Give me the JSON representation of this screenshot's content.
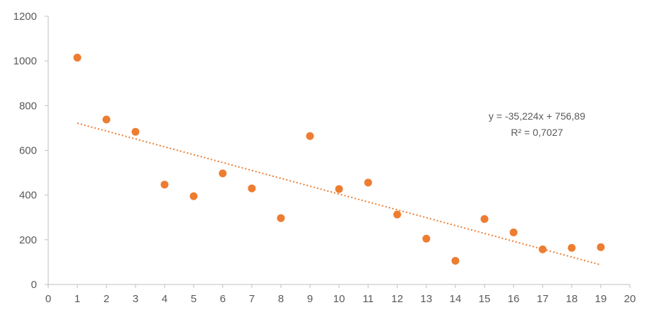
{
  "chart_data": {
    "type": "scatter",
    "x": [
      1,
      2,
      3,
      4,
      5,
      6,
      7,
      8,
      9,
      10,
      11,
      12,
      13,
      14,
      15,
      16,
      17,
      18,
      19
    ],
    "y": [
      1015,
      738,
      683,
      447,
      395,
      497,
      430,
      297,
      664,
      427,
      456,
      313,
      205,
      106,
      293,
      233,
      157,
      164,
      167
    ],
    "xlim": [
      0,
      20
    ],
    "ylim": [
      0,
      1200
    ],
    "x_ticks": [
      "0",
      "1",
      "2",
      "3",
      "4",
      "5",
      "6",
      "7",
      "8",
      "9",
      "10",
      "11",
      "12",
      "13",
      "14",
      "15",
      "16",
      "17",
      "18",
      "19",
      "20"
    ],
    "y_ticks": [
      "0",
      "200",
      "400",
      "600",
      "800",
      "1000",
      "1200"
    ],
    "trendline": {
      "type": "linear",
      "slope": -35.224,
      "intercept": 756.89,
      "x_range": [
        1,
        19
      ],
      "style": "dotted"
    },
    "annotation": {
      "equation": "y = -35,224x + 756,89",
      "r_squared": "R² = 0,7027"
    },
    "grid": false,
    "legend": "none",
    "colors": {
      "marker": "#ED7D31",
      "trendline": "#ED7D31",
      "axis": "#BFBFBF",
      "text": "#595959"
    }
  }
}
